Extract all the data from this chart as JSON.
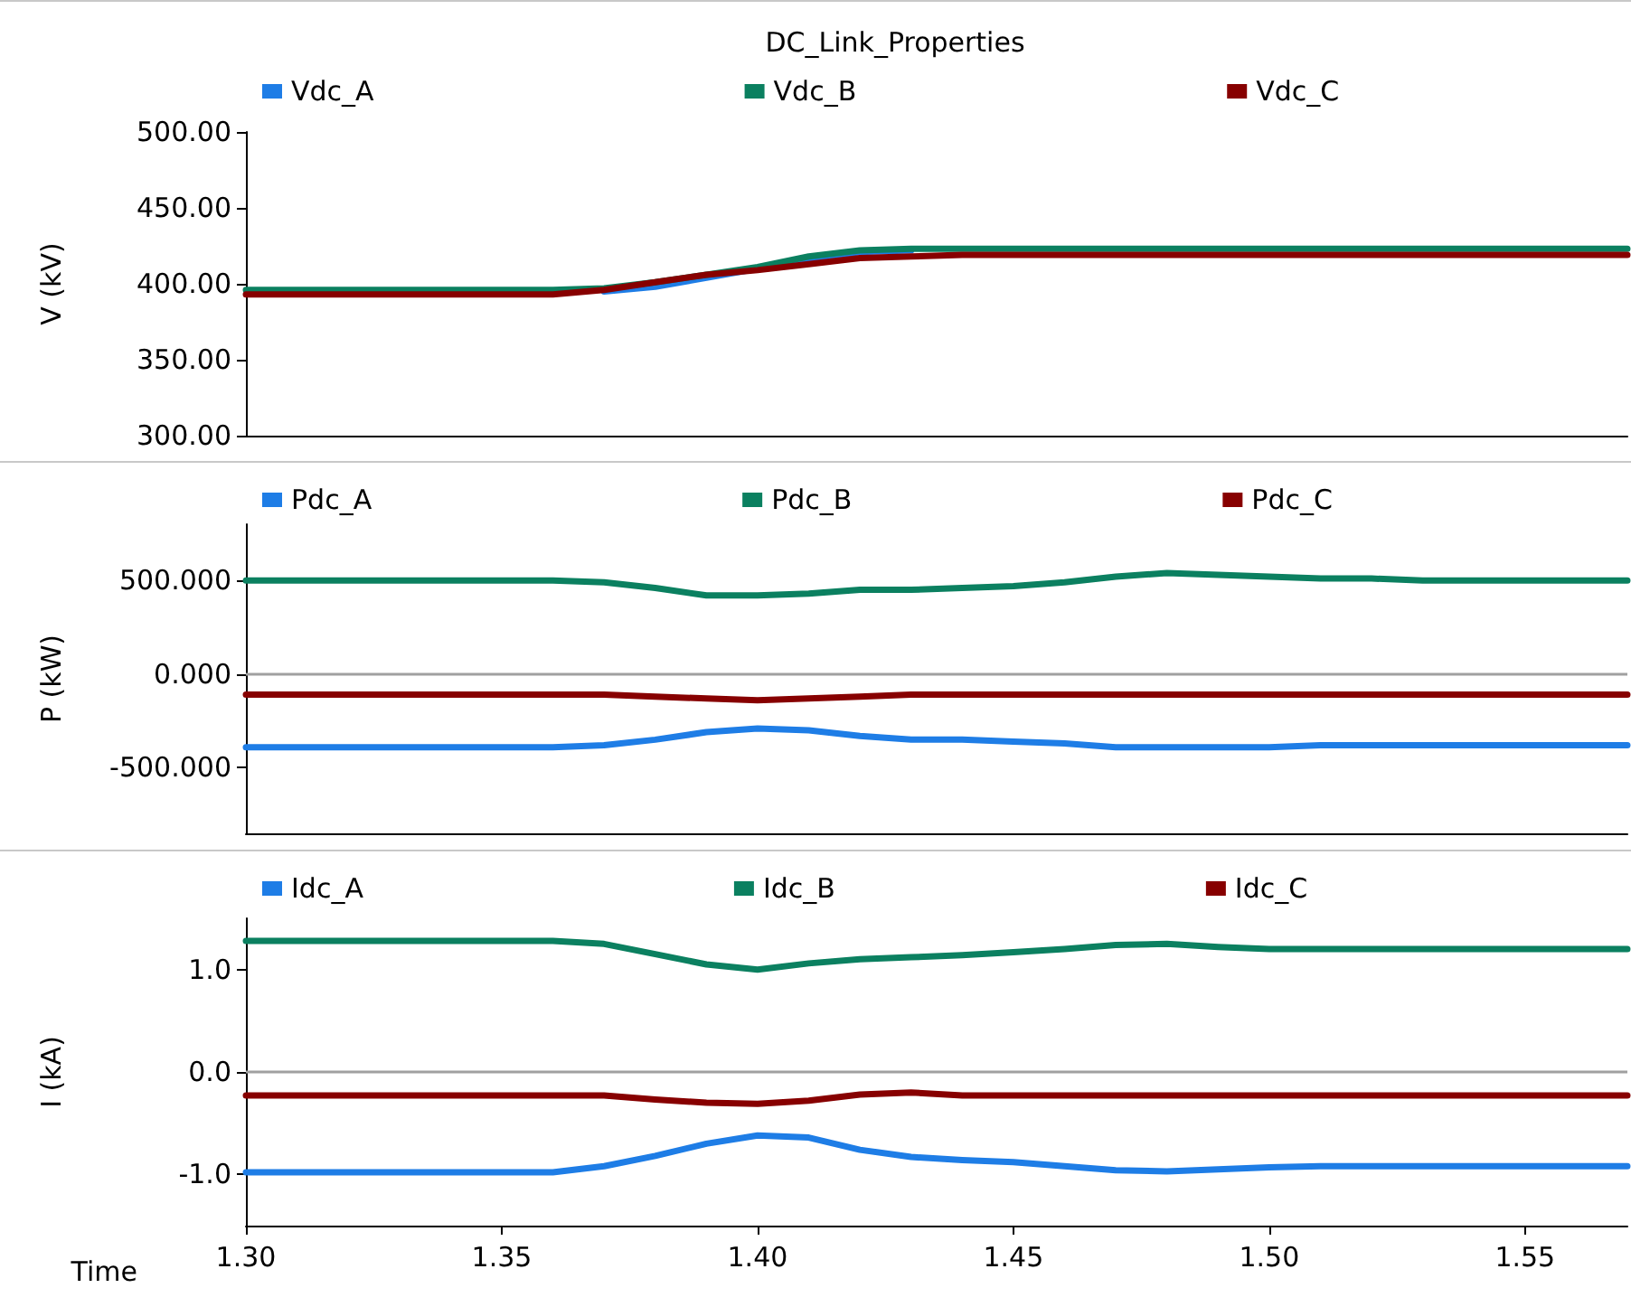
{
  "chart_data": [
    {
      "type": "line",
      "title": "DC_Link_Properties",
      "ylabel": "V (kV)",
      "legend": "top",
      "grid": false,
      "marker": "none",
      "line_style": "solid",
      "tick_labels": "y",
      "x": [
        1.3,
        1.31,
        1.32,
        1.33,
        1.34,
        1.35,
        1.36,
        1.37,
        1.38,
        1.39,
        1.4,
        1.41,
        1.42,
        1.43,
        1.44,
        1.45,
        1.46,
        1.47,
        1.48,
        1.49,
        1.5,
        1.51,
        1.52,
        1.53,
        1.54,
        1.55,
        1.56,
        1.57
      ],
      "xlim": [
        1.3,
        1.57
      ],
      "ylim": [
        300,
        500
      ],
      "yticks": [
        {
          "value": 300,
          "label": "300.00"
        },
        {
          "value": 350,
          "label": "350.00"
        },
        {
          "value": 400,
          "label": "400.00"
        },
        {
          "value": 450,
          "label": "450.00"
        },
        {
          "value": 500,
          "label": "500.00"
        }
      ],
      "series": [
        {
          "name": "Vdc_A",
          "color": "#1e7de6",
          "values": [
            null,
            null,
            null,
            null,
            null,
            null,
            null,
            395,
            398,
            404,
            410,
            416,
            421,
            422,
            null,
            null,
            null,
            null,
            null,
            null,
            null,
            null,
            null,
            null,
            null,
            null,
            null,
            null
          ]
        },
        {
          "name": "Vdc_B",
          "color": "#0b8060",
          "values": [
            396,
            396,
            396,
            396,
            396,
            396,
            396,
            397,
            401,
            406,
            411,
            418,
            422,
            423,
            423,
            423,
            423,
            423,
            423,
            423,
            423,
            423,
            423,
            423,
            423,
            423,
            423,
            423
          ]
        },
        {
          "name": "Vdc_C",
          "color": "#870000",
          "values": [
            393,
            393,
            393,
            393,
            393,
            393,
            393,
            396,
            401,
            406,
            409,
            413,
            417,
            418,
            419,
            419,
            419,
            419,
            419,
            419,
            419,
            419,
            419,
            419,
            419,
            419,
            419,
            419
          ]
        }
      ]
    },
    {
      "type": "line",
      "ylabel": "P (kW)",
      "legend": "top",
      "grid": false,
      "marker": "none",
      "line_style": "solid",
      "tick_labels": "y",
      "x": [
        1.3,
        1.31,
        1.32,
        1.33,
        1.34,
        1.35,
        1.36,
        1.37,
        1.38,
        1.39,
        1.4,
        1.41,
        1.42,
        1.43,
        1.44,
        1.45,
        1.46,
        1.47,
        1.48,
        1.49,
        1.5,
        1.51,
        1.52,
        1.53,
        1.54,
        1.55,
        1.56,
        1.57
      ],
      "xlim": [
        1.3,
        1.57
      ],
      "ylim": [
        -850,
        800
      ],
      "yticks": [
        {
          "value": -500,
          "label": "-500.000"
        },
        {
          "value": 0,
          "label": "0.000"
        },
        {
          "value": 500,
          "label": "500.000"
        }
      ],
      "ref_lines": [
        {
          "axis": "y",
          "value": 0,
          "color": "#a0a0a0"
        }
      ],
      "series": [
        {
          "name": "Pdc_A",
          "color": "#1e7de6",
          "values": [
            -390,
            -390,
            -390,
            -390,
            -390,
            -390,
            -390,
            -380,
            -350,
            -310,
            -290,
            -300,
            -330,
            -350,
            -350,
            -360,
            -370,
            -390,
            -390,
            -390,
            -390,
            -380,
            -380,
            -380,
            -380,
            -380,
            -380,
            -380
          ]
        },
        {
          "name": "Pdc_B",
          "color": "#0b8060",
          "values": [
            500,
            500,
            500,
            500,
            500,
            500,
            500,
            490,
            460,
            420,
            420,
            430,
            450,
            450,
            460,
            470,
            490,
            520,
            540,
            530,
            520,
            510,
            510,
            500,
            500,
            500,
            500,
            500
          ]
        },
        {
          "name": "Pdc_C",
          "color": "#870000",
          "values": [
            -110,
            -110,
            -110,
            -110,
            -110,
            -110,
            -110,
            -110,
            -120,
            -130,
            -140,
            -130,
            -120,
            -110,
            -110,
            -110,
            -110,
            -110,
            -110,
            -110,
            -110,
            -110,
            -110,
            -110,
            -110,
            -110,
            -110,
            -110
          ]
        }
      ]
    },
    {
      "type": "line",
      "ylabel": "I (kA)",
      "xlabel": "Time",
      "legend": "top",
      "grid": false,
      "marker": "none",
      "line_style": "solid",
      "x": [
        1.3,
        1.31,
        1.32,
        1.33,
        1.34,
        1.35,
        1.36,
        1.37,
        1.38,
        1.39,
        1.4,
        1.41,
        1.42,
        1.43,
        1.44,
        1.45,
        1.46,
        1.47,
        1.48,
        1.49,
        1.5,
        1.51,
        1.52,
        1.53,
        1.54,
        1.55,
        1.56,
        1.57
      ],
      "xlim": [
        1.3,
        1.57
      ],
      "xticks": [
        {
          "value": 1.3,
          "label": "1.30"
        },
        {
          "value": 1.35,
          "label": "1.35"
        },
        {
          "value": 1.4,
          "label": "1.40"
        },
        {
          "value": 1.45,
          "label": "1.45"
        },
        {
          "value": 1.5,
          "label": "1.50"
        },
        {
          "value": 1.55,
          "label": "1.55"
        }
      ],
      "ylim": [
        -1.5,
        1.5
      ],
      "yticks": [
        {
          "value": -1,
          "label": "-1.0"
        },
        {
          "value": 0,
          "label": "0.0"
        },
        {
          "value": 1,
          "label": "1.0"
        }
      ],
      "ref_lines": [
        {
          "axis": "y",
          "value": 0,
          "color": "#a0a0a0"
        }
      ],
      "series": [
        {
          "name": "Idc_A",
          "color": "#1e7de6",
          "values": [
            -0.98,
            -0.98,
            -0.98,
            -0.98,
            -0.98,
            -0.98,
            -0.98,
            -0.92,
            -0.82,
            -0.7,
            -0.62,
            -0.64,
            -0.76,
            -0.83,
            -0.86,
            -0.88,
            -0.92,
            -0.96,
            -0.97,
            -0.95,
            -0.93,
            -0.92,
            -0.92,
            -0.92,
            -0.92,
            -0.92,
            -0.92,
            -0.92
          ]
        },
        {
          "name": "Idc_B",
          "color": "#0b8060",
          "values": [
            1.28,
            1.28,
            1.28,
            1.28,
            1.28,
            1.28,
            1.28,
            1.25,
            1.15,
            1.05,
            1.0,
            1.06,
            1.1,
            1.12,
            1.14,
            1.17,
            1.2,
            1.24,
            1.25,
            1.22,
            1.2,
            1.2,
            1.2,
            1.2,
            1.2,
            1.2,
            1.2,
            1.2
          ]
        },
        {
          "name": "Idc_C",
          "color": "#870000",
          "values": [
            -0.23,
            -0.23,
            -0.23,
            -0.23,
            -0.23,
            -0.23,
            -0.23,
            -0.23,
            -0.27,
            -0.3,
            -0.31,
            -0.28,
            -0.22,
            -0.2,
            -0.23,
            -0.23,
            -0.23,
            -0.23,
            -0.23,
            -0.23,
            -0.23,
            -0.23,
            -0.23,
            -0.23,
            -0.23,
            -0.23,
            -0.23,
            -0.23
          ]
        }
      ]
    }
  ]
}
